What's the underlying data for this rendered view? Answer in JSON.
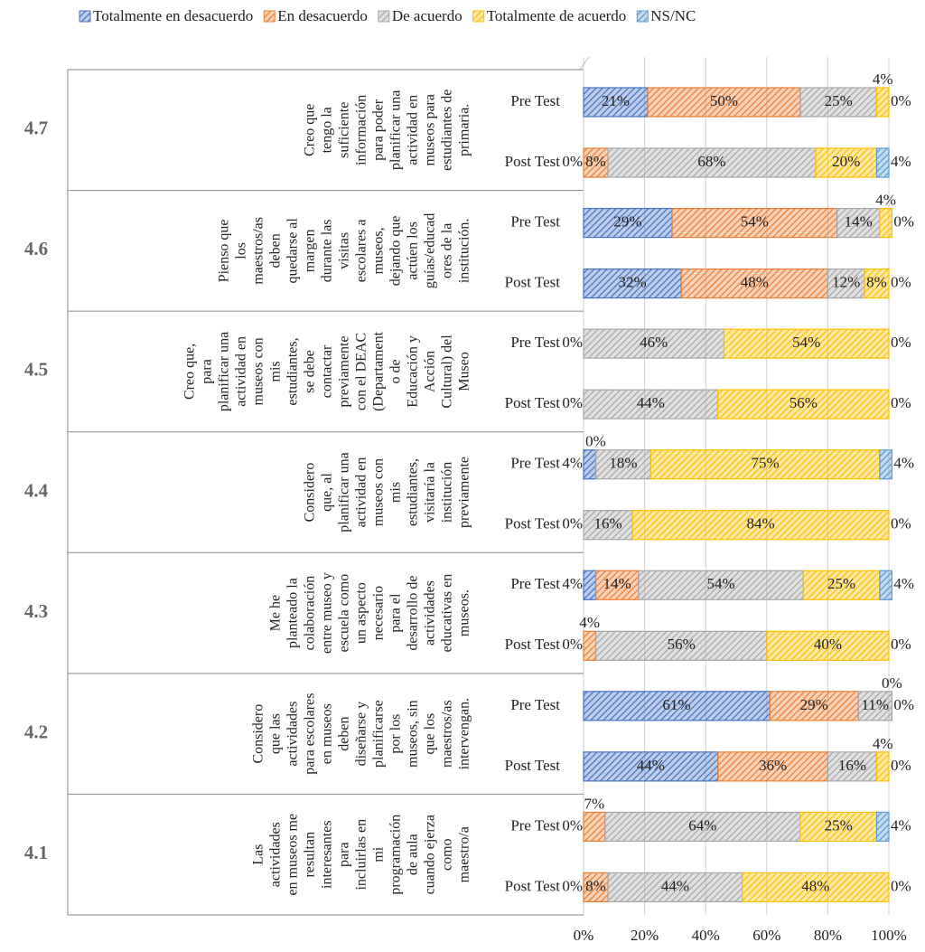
{
  "chart_data": {
    "type": "bar",
    "orientation": "horizontal",
    "stacked": true,
    "legend": "top",
    "grid": true,
    "xlim": [
      0,
      100
    ],
    "xticks": [
      {
        "value": 0,
        "label": "0%"
      },
      {
        "value": 20,
        "label": "20%"
      },
      {
        "value": 40,
        "label": "40%"
      },
      {
        "value": 60,
        "label": "60%"
      },
      {
        "value": 80,
        "label": "80%"
      },
      {
        "value": 100,
        "label": "100%"
      }
    ],
    "categories": [
      "Pre Test",
      "Post Test",
      "Pre Test",
      "Post Test",
      "Pre Test",
      "Post Test",
      "Pre Test",
      "Post Test",
      "Pre Test",
      "Post Test",
      "Pre Test",
      "Post Test",
      "Pre Test",
      "Post Test"
    ],
    "groups": [
      {
        "code": "4.7",
        "text": [
          "Creo que",
          "tengo la",
          "suficiente",
          "información",
          "para poder",
          "planificar una",
          "actividad en",
          "museos para",
          "estudiantes de",
          "primaria."
        ]
      },
      {
        "code": "4.6",
        "text": [
          "Pienso que",
          "los",
          "maestros/as",
          "deben",
          "quedarse al",
          "margen",
          "durante las",
          "visitas",
          "escolares a",
          "museos,",
          "dejando que",
          "actúen los",
          "guías/educad",
          "ores de la",
          "institución."
        ]
      },
      {
        "code": "4.5",
        "text": [
          "Creo que,",
          "para",
          "planificar una",
          "actividad en",
          "museos con",
          "mis",
          "estudiantes,",
          "se debe",
          "contactar",
          "previamente",
          "con el DEAC",
          "(Departament",
          "o de",
          "Educación y",
          "Acción",
          "Cultural) del",
          "Museo"
        ]
      },
      {
        "code": "4.4",
        "text": [
          "Considero",
          "que, al",
          "planificar una",
          "actividad en",
          "museos con",
          "mis",
          "estudiantes,",
          "visitaría la",
          "institución",
          "previamente"
        ]
      },
      {
        "code": "4.3",
        "text": [
          "Me he",
          "planteado la",
          "colaboración",
          "entre museo y",
          "escuela como",
          "un aspecto",
          "necesario",
          "para el",
          "desarrollo de",
          "actividades",
          "educativas en",
          "museos."
        ]
      },
      {
        "code": "4.2",
        "text": [
          "Considero",
          "que las",
          "actividades",
          "para escolares",
          "en museos",
          "deben",
          "diseñarse y",
          "planificarse",
          "por los",
          "museos, sin",
          "que los",
          "maestros/as",
          "intervengan."
        ]
      },
      {
        "code": "4.1",
        "text": [
          "Las",
          "actividades",
          "en museos me",
          "resultan",
          "interesantes",
          "para",
          "incluirlas en",
          "mi",
          "programación",
          "de aula",
          "cuando ejerza",
          "como",
          "maestro/a"
        ]
      }
    ],
    "series": [
      {
        "name": "Totalmente en desacuerdo",
        "color": "#4472c4",
        "values": [
          21,
          0,
          29,
          32,
          0,
          0,
          4,
          0,
          4,
          0,
          61,
          44,
          0,
          0
        ],
        "value_labels": [
          "21%",
          "0%",
          "29%",
          "32%",
          "0%",
          "0%",
          "4%",
          "0%",
          "4%",
          "0%",
          "61%",
          "44%",
          "0%",
          "0%"
        ]
      },
      {
        "name": "En desacuerdo",
        "color": "#ed7d31",
        "values": [
          50,
          8,
          54,
          48,
          0,
          0,
          0,
          0,
          14,
          4,
          29,
          36,
          7,
          8
        ],
        "value_labels": [
          "50%",
          "8%",
          "54%",
          "48%",
          null,
          null,
          "0%",
          null,
          "14%",
          "4%",
          "29%",
          "36%",
          "7%",
          "8%"
        ]
      },
      {
        "name": "De acuerdo",
        "color": "#a6a6a6",
        "values": [
          25,
          68,
          14,
          12,
          46,
          44,
          18,
          16,
          54,
          56,
          11,
          16,
          64,
          44
        ],
        "value_labels": [
          "25%",
          "68%",
          "14%",
          "12%",
          "46%",
          "44%",
          "18%",
          "16%",
          "54%",
          "56%",
          "11%",
          "16%",
          "64%",
          "44%"
        ]
      },
      {
        "name": "Totalmente de acuerdo",
        "color": "#ffc000",
        "values": [
          4,
          20,
          4,
          8,
          54,
          56,
          75,
          84,
          25,
          40,
          0,
          4,
          25,
          48
        ],
        "value_labels": [
          "4%",
          "20%",
          "4%",
          "8%",
          "54%",
          "56%",
          "75%",
          "84%",
          "25%",
          "40%",
          "0%",
          "4%",
          "25%",
          "48%"
        ]
      },
      {
        "name": "NS/NC",
        "color": "#5b9bd5",
        "values": [
          0,
          4,
          0,
          0,
          0,
          0,
          4,
          0,
          4,
          0,
          0,
          0,
          4,
          0
        ],
        "value_labels": [
          "0%",
          "4%",
          "0%",
          "0%",
          "0%",
          "0%",
          "4%",
          "0%",
          "4%",
          "0%",
          "0%",
          "0%",
          "4%",
          "0%"
        ]
      }
    ]
  }
}
